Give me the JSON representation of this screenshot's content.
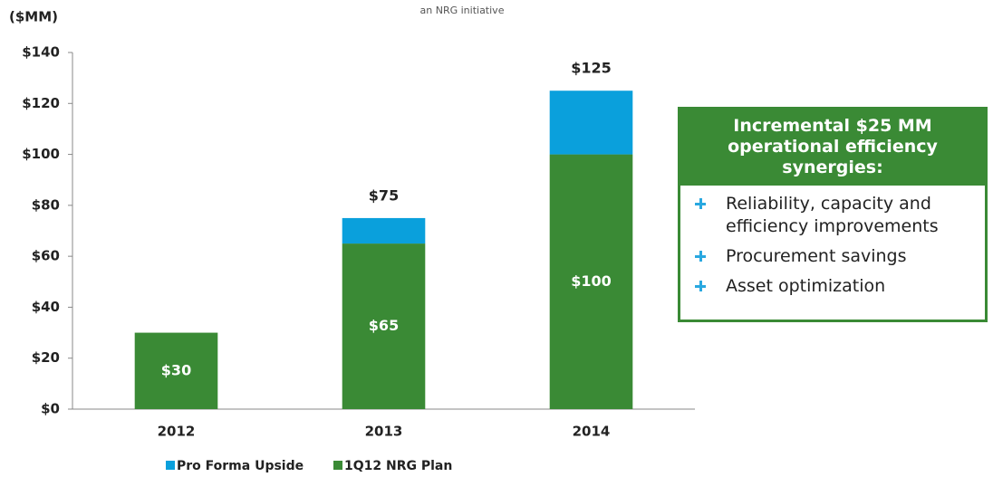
{
  "chart_data": {
    "type": "stacked_bar",
    "subtitle": "an NRG initiative",
    "y_label": "($MM)",
    "categories": [
      "2012",
      "2013",
      "2014"
    ],
    "series": [
      {
        "name": "1Q12 NRG Plan",
        "color": "#3a8a35",
        "values": [
          30,
          65,
          100
        ],
        "value_labels": [
          "$30",
          "$65",
          "$100"
        ]
      },
      {
        "name": "Pro Forma Upside",
        "color": "#0aa0dc",
        "values": [
          null,
          10,
          25
        ]
      }
    ],
    "totals": [
      null,
      75,
      125
    ],
    "total_labels": [
      null,
      "$75",
      "$125"
    ],
    "ylim": [
      0,
      140
    ],
    "yticks": [
      {
        "value": 0,
        "label": "$0"
      },
      {
        "value": 20,
        "label": "$20"
      },
      {
        "value": 40,
        "label": "$40"
      },
      {
        "value": 60,
        "label": "$60"
      },
      {
        "value": 80,
        "label": "$80"
      },
      {
        "value": 100,
        "label": "$100"
      },
      {
        "value": 120,
        "label": "$120"
      },
      {
        "value": 140,
        "label": "$140"
      }
    ],
    "grid": false
  },
  "callout": {
    "title": "Incremental $25 MM operational efficiency synergies:",
    "items": [
      "Reliability, capacity and efficiency improvements",
      "Procurement savings",
      "Asset optimization"
    ]
  }
}
